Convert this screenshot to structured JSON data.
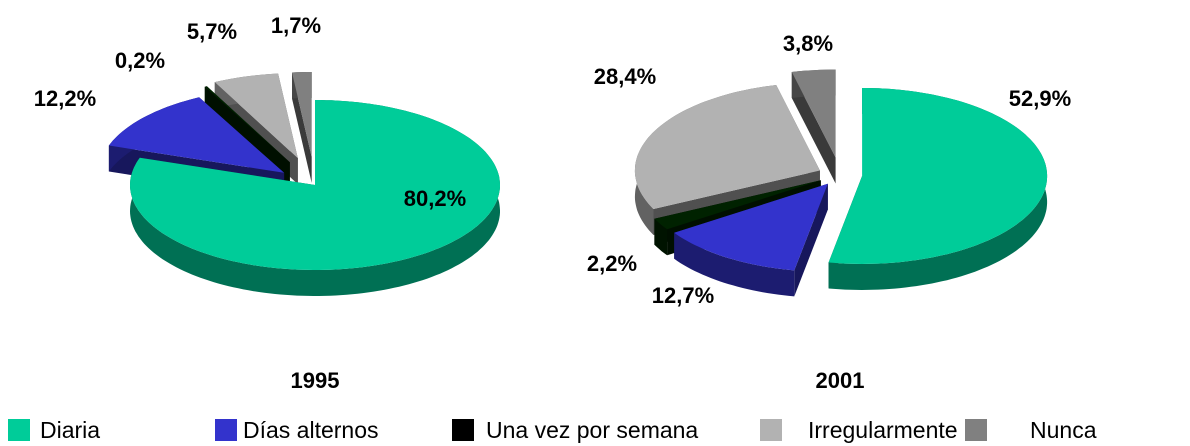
{
  "chart_data": {
    "type": "pie",
    "categories": [
      "Diaria",
      "Días alternos",
      "Una vez por semana",
      "Irregularmente",
      "Nunca"
    ],
    "colors": [
      "#00cc99",
      "#3333cc",
      "#002200",
      "#b2b2b2",
      "#808080"
    ],
    "series": [
      {
        "name": "1995",
        "values": [
          80.2,
          12.2,
          0.2,
          5.7,
          1.7
        ],
        "value_labels": [
          "80,2%",
          "12,2%",
          "0,2%",
          "5,7%",
          "1,7%"
        ]
      },
      {
        "name": "2001",
        "values": [
          52.9,
          12.7,
          2.2,
          28.4,
          3.8
        ],
        "value_labels": [
          "52,9%",
          "12,7%",
          "2,2%",
          "28,4%",
          "3,8%"
        ]
      }
    ]
  }
}
